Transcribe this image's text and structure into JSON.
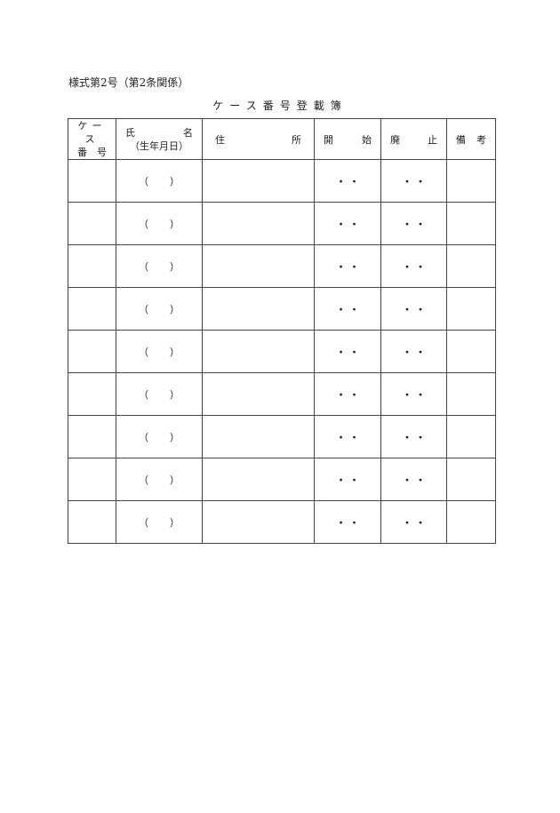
{
  "form_number": "様式第2号（第2条関係）",
  "title": "ケース番号登載簿",
  "columns": {
    "case_no": [
      "ケース",
      "番　号"
    ],
    "name": [
      "氏",
      "名",
      "（生年月日）"
    ],
    "address": [
      "住",
      "所"
    ],
    "start": [
      "開",
      "始"
    ],
    "abolish": [
      "廃",
      "止"
    ],
    "remarks": [
      "備",
      "考"
    ]
  },
  "row_template": {
    "paren_open": "（",
    "paren_close": "）",
    "dot": "・"
  },
  "row_count": 9
}
